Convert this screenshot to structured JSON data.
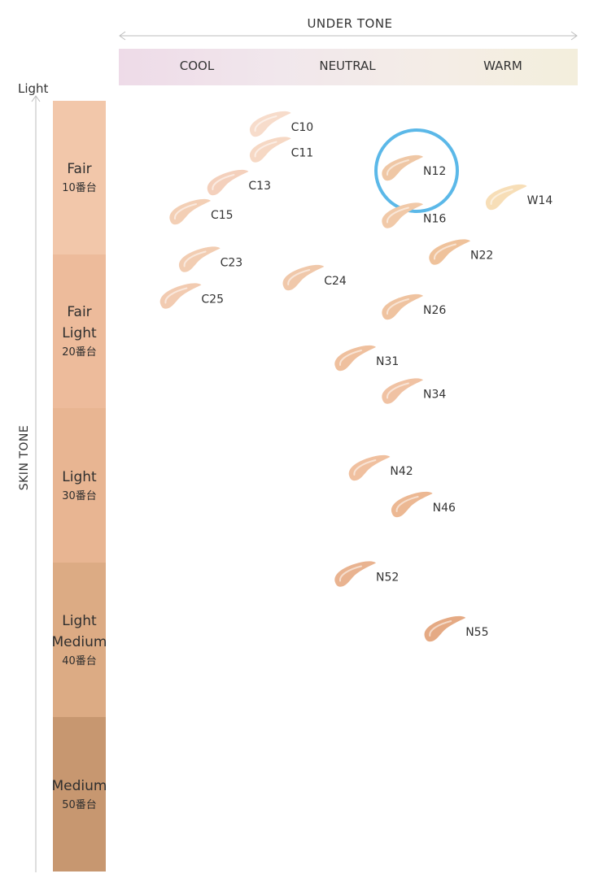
{
  "chart_data": {
    "type": "scatter",
    "x_axis": {
      "title": "UNDER TONE",
      "categories": [
        "COOL",
        "NEUTRAL",
        "WARM"
      ],
      "direction": "cool-to-warm"
    },
    "y_axis": {
      "title": "SKIN TONE",
      "top_label": "Light",
      "direction": "light-at-top"
    },
    "tone_groups": [
      {
        "name": "Fair",
        "lines": [
          "Fair"
        ],
        "sub": "10番台",
        "color": "#f2c7aa"
      },
      {
        "name": "Fair Light",
        "lines": [
          "Fair",
          "Light"
        ],
        "sub": "20番台",
        "color": "#edbb9b"
      },
      {
        "name": "Light",
        "lines": [
          "Light"
        ],
        "sub": "30番台",
        "color": "#e8b592"
      },
      {
        "name": "Light Medium",
        "lines": [
          "Light",
          "Medium"
        ],
        "sub": "40番台",
        "color": "#dcab84"
      },
      {
        "name": "Medium",
        "lines": [
          "Medium"
        ],
        "sub": "50番台",
        "color": "#c79770"
      }
    ],
    "points": [
      {
        "label": "C10",
        "undertone": 0.22,
        "depth": 10.2,
        "color": "#f7dccb"
      },
      {
        "label": "C11",
        "undertone": 0.22,
        "depth": 10.9,
        "color": "#f6d8c4"
      },
      {
        "label": "C13",
        "undertone": 0.13,
        "depth": 11.8,
        "color": "#f4d0bc"
      },
      {
        "label": "C15",
        "undertone": 0.05,
        "depth": 12.6,
        "color": "#f3cfb5"
      },
      {
        "label": "N12",
        "undertone": 0.5,
        "depth": 11.4,
        "color": "#efc7a5",
        "highlighted": true
      },
      {
        "label": "N16",
        "undertone": 0.5,
        "depth": 12.7,
        "color": "#f1c9a8"
      },
      {
        "label": "W14",
        "undertone": 0.72,
        "depth": 12.2,
        "color": "#f7deb7"
      },
      {
        "label": "C23",
        "undertone": 0.07,
        "depth": 13.9,
        "color": "#f2cdb2"
      },
      {
        "label": "C24",
        "undertone": 0.29,
        "depth": 14.4,
        "color": "#f0c8aa"
      },
      {
        "label": "C25",
        "undertone": 0.03,
        "depth": 14.9,
        "color": "#f2cbb1"
      },
      {
        "label": "N22",
        "undertone": 0.6,
        "depth": 13.7,
        "color": "#efc29b"
      },
      {
        "label": "N26",
        "undertone": 0.5,
        "depth": 15.2,
        "color": "#efc3a0"
      },
      {
        "label": "N31",
        "undertone": 0.4,
        "depth": 16.6,
        "color": "#efc09e"
      },
      {
        "label": "N34",
        "undertone": 0.5,
        "depth": 17.5,
        "color": "#f0c2a3"
      },
      {
        "label": "N42",
        "undertone": 0.43,
        "depth": 19.6,
        "color": "#f0c09f"
      },
      {
        "label": "N46",
        "undertone": 0.52,
        "depth": 20.6,
        "color": "#ecb893"
      },
      {
        "label": "N52",
        "undertone": 0.4,
        "depth": 22.5,
        "color": "#e9b390"
      },
      {
        "label": "N55",
        "undertone": 0.59,
        "depth": 24.0,
        "color": "#e5aa84"
      }
    ],
    "highlight_color": "#5bb8e8"
  }
}
